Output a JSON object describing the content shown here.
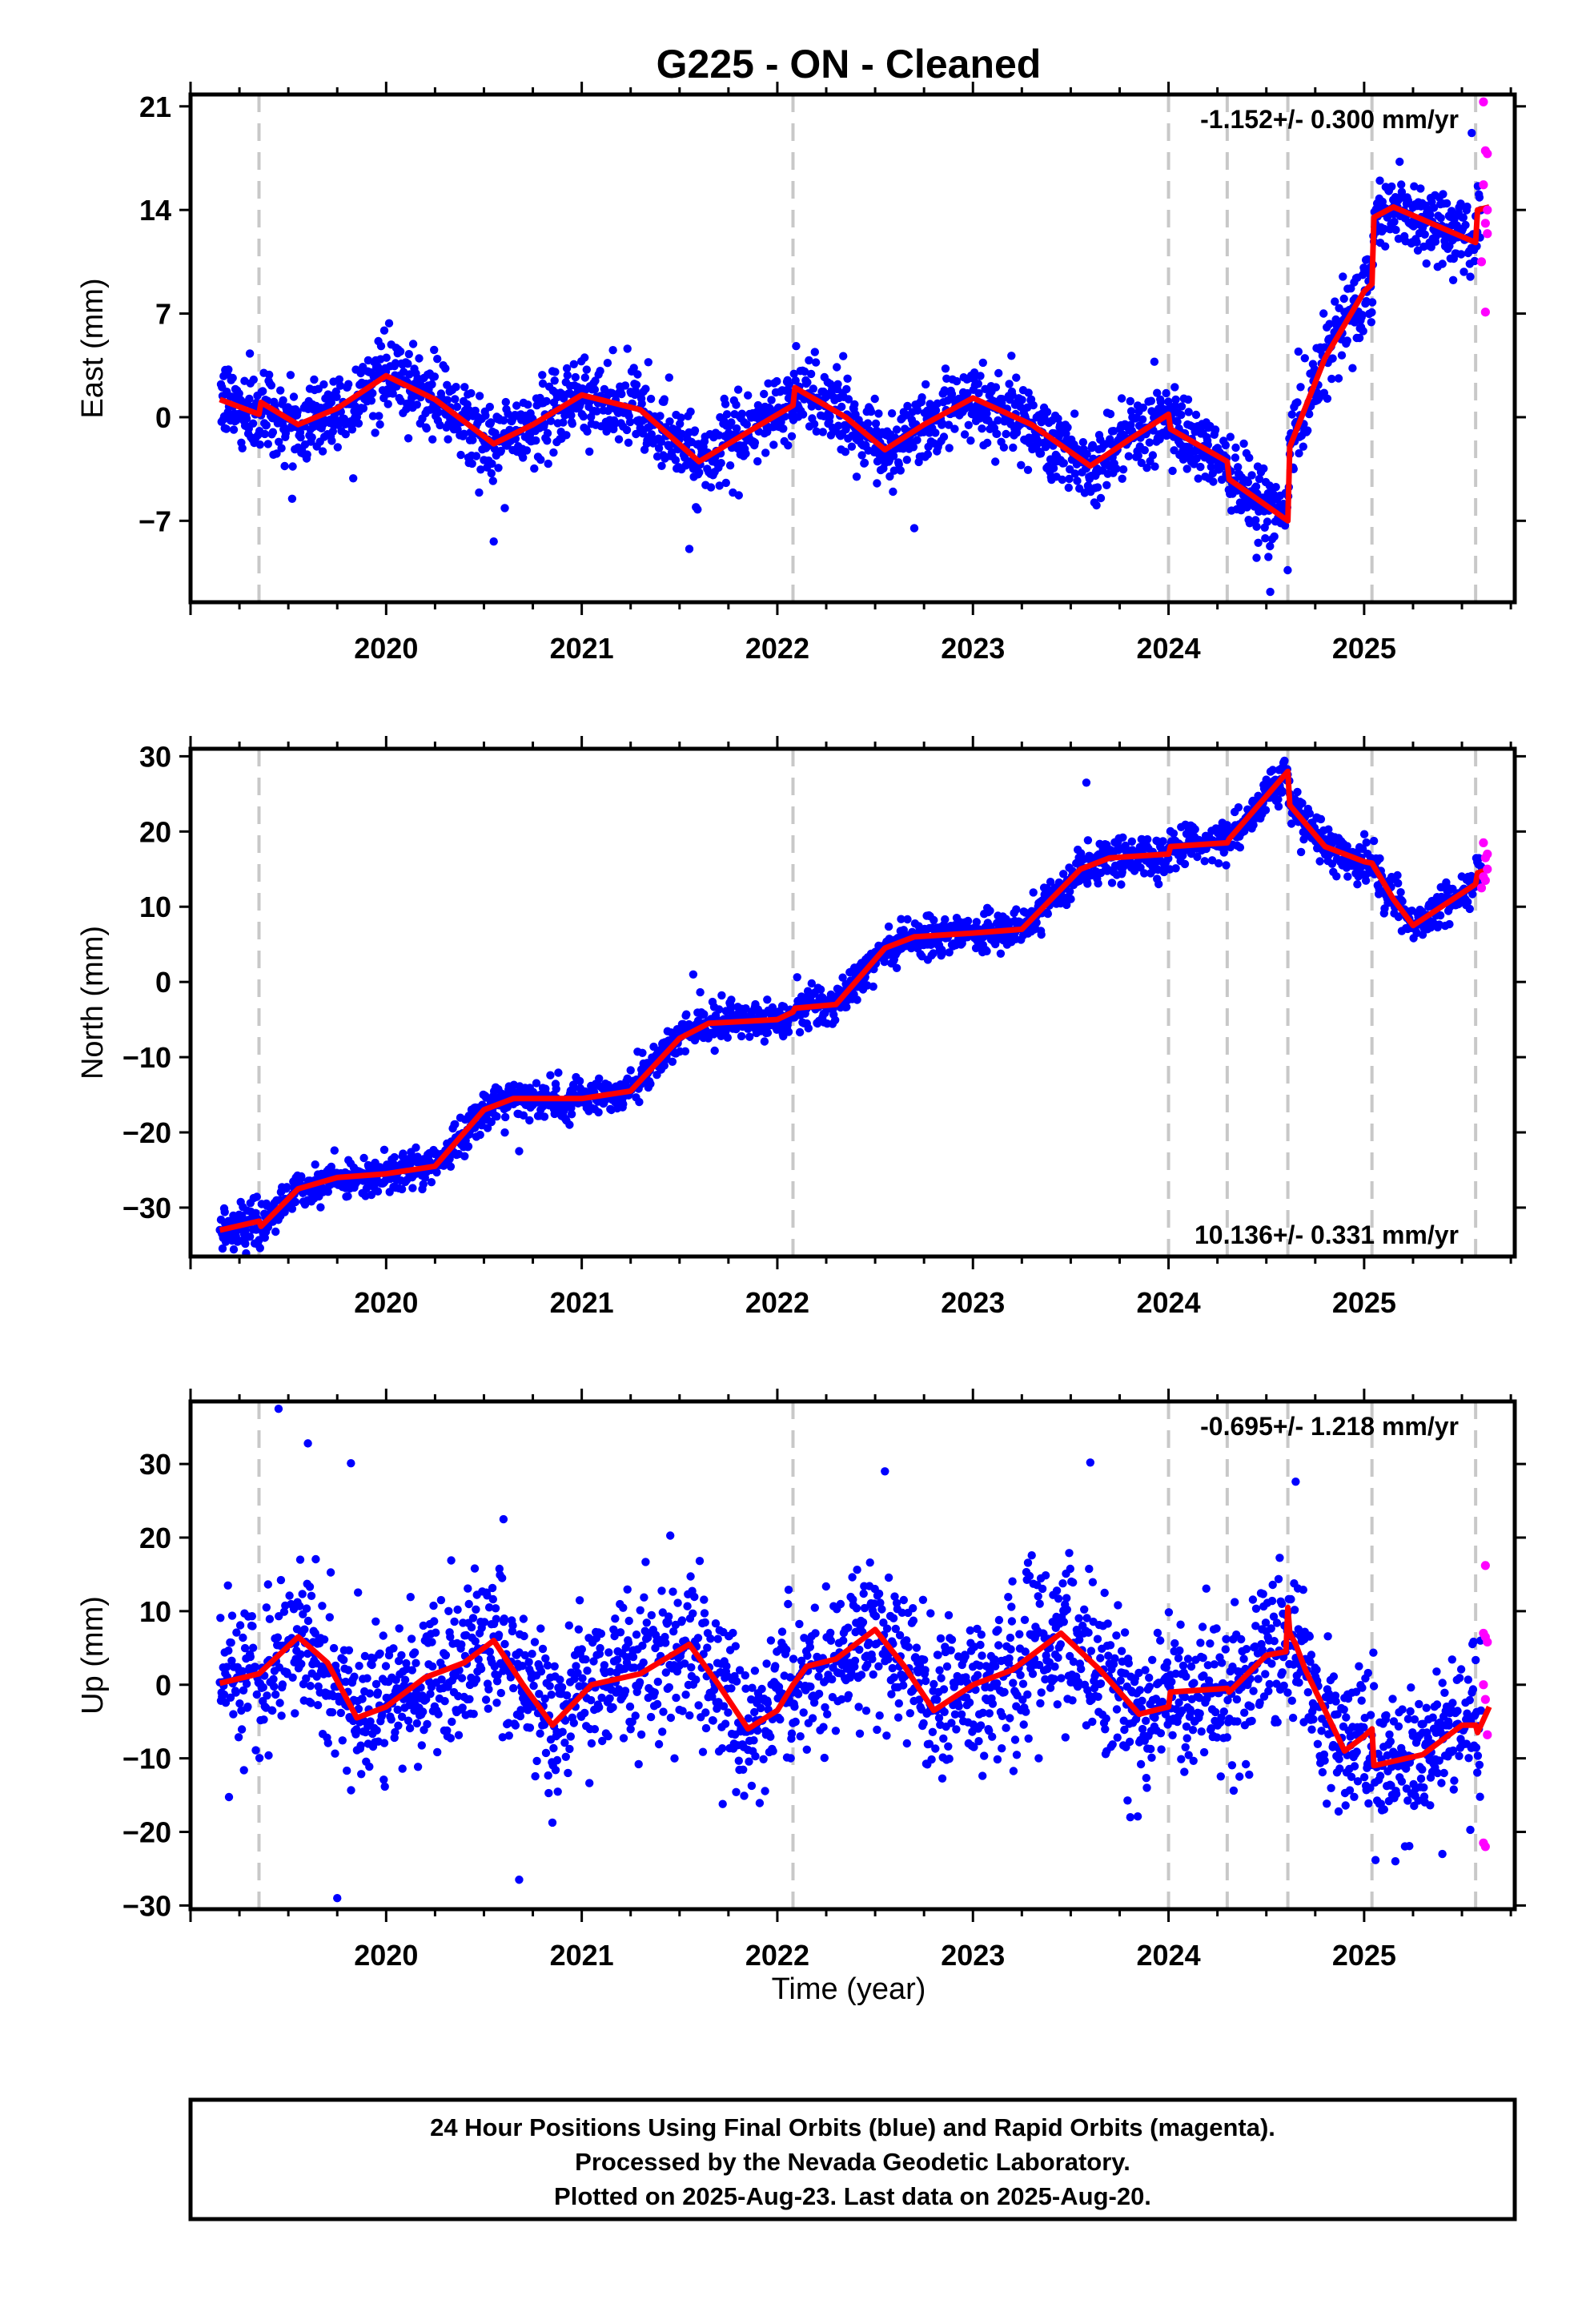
{
  "figure": {
    "title": "G225  - ON - Cleaned",
    "xlabel": "Time (year)",
    "footer": [
      "24 Hour Positions Using Final Orbits (blue) and Rapid Orbits (magenta).",
      "Processed by the Nevada Geodetic Laboratory.",
      "Plotted on 2025-Aug-23. Last data on 2025-Aug-20."
    ],
    "colors": {
      "final": "#0000ff",
      "rapid": "#ff00ff",
      "model": "#ff0000",
      "steps": "#c8c8c8"
    }
  },
  "chart_data": [
    {
      "type": "scatter",
      "ylabel": "East (mm)",
      "xlim": [
        2019.0,
        2025.77
      ],
      "ylim": [
        -12.5,
        21.8
      ],
      "yticks": [
        -7,
        0,
        7,
        14,
        21
      ],
      "xticks": [
        2020,
        2021,
        2022,
        2023,
        2024,
        2025
      ],
      "rate_text": "-1.152+/- 0.300 mm/yr",
      "rate_position": "top-right",
      "steps": [
        2019.35,
        2022.08,
        2024.0,
        2024.3,
        2024.61,
        2025.04,
        2025.57
      ],
      "series": [
        {
          "name": "Final Orbits",
          "color": "#0000ff",
          "trend": [
            [
              2019.15,
              1.2
            ],
            [
              2019.35,
              0.2
            ],
            [
              2019.36,
              1.0
            ],
            [
              2019.55,
              -0.5
            ],
            [
              2019.75,
              0.6
            ],
            [
              2020.0,
              2.8
            ],
            [
              2020.25,
              1.2
            ],
            [
              2020.55,
              -1.8
            ],
            [
              2020.75,
              -0.5
            ],
            [
              2021.0,
              1.5
            ],
            [
              2021.3,
              0.5
            ],
            [
              2021.6,
              -3.0
            ],
            [
              2021.85,
              -1.0
            ],
            [
              2022.08,
              0.8
            ],
            [
              2022.09,
              2.0
            ],
            [
              2022.35,
              0.0
            ],
            [
              2022.55,
              -2.2
            ],
            [
              2022.75,
              -0.5
            ],
            [
              2023.0,
              1.3
            ],
            [
              2023.3,
              -0.5
            ],
            [
              2023.6,
              -3.3
            ],
            [
              2023.8,
              -1.5
            ],
            [
              2024.0,
              0.2
            ],
            [
              2024.01,
              -0.8
            ],
            [
              2024.3,
              -3.0
            ],
            [
              2024.31,
              -4.2
            ],
            [
              2024.61,
              -7.0
            ],
            [
              2024.62,
              -2.0
            ],
            [
              2024.8,
              4.0
            ],
            [
              2025.0,
              8.5
            ],
            [
              2025.04,
              9.0
            ],
            [
              2025.05,
              13.5
            ],
            [
              2025.15,
              14.2
            ],
            [
              2025.57,
              11.8
            ],
            [
              2025.58,
              14.0
            ],
            [
              2025.64,
              14.2
            ]
          ],
          "noise": 1.3,
          "outliers": [
            [
              2020.55,
              -8.4
            ],
            [
              2021.55,
              -8.9
            ],
            [
              2022.7,
              -7.5
            ],
            [
              2024.52,
              -11.8
            ],
            [
              2025.55,
              19.2
            ],
            [
              2024.45,
              -9.5
            ]
          ]
        },
        {
          "name": "Rapid Orbits",
          "color": "#ff00ff",
          "points": [
            [
              2025.61,
              21.3
            ],
            [
              2025.62,
              18.0
            ],
            [
              2025.63,
              17.8
            ],
            [
              2025.61,
              15.7
            ],
            [
              2025.62,
              13.1
            ],
            [
              2025.63,
              12.4
            ],
            [
              2025.6,
              10.5
            ],
            [
              2025.62,
              7.1
            ],
            [
              2025.63,
              14.0
            ]
          ]
        }
      ]
    },
    {
      "type": "scatter",
      "ylabel": "North (mm)",
      "xlim": [
        2019.0,
        2025.77
      ],
      "ylim": [
        -36.5,
        31.0
      ],
      "yticks": [
        -30,
        -20,
        -10,
        0,
        10,
        20,
        30
      ],
      "xticks": [
        2020,
        2021,
        2022,
        2023,
        2024,
        2025
      ],
      "rate_text": "10.136+/- 0.331 mm/yr",
      "rate_position": "bottom-right",
      "steps": [
        2019.35,
        2022.08,
        2024.0,
        2024.3,
        2024.61,
        2025.04,
        2025.57
      ],
      "series": [
        {
          "name": "Final Orbits",
          "color": "#0000ff",
          "trend": [
            [
              2019.15,
              -33.0
            ],
            [
              2019.35,
              -31.8
            ],
            [
              2019.36,
              -32.5
            ],
            [
              2019.55,
              -27.5
            ],
            [
              2019.75,
              -26.0
            ],
            [
              2020.0,
              -25.5
            ],
            [
              2020.25,
              -24.5
            ],
            [
              2020.5,
              -17.0
            ],
            [
              2020.65,
              -15.5
            ],
            [
              2021.0,
              -15.5
            ],
            [
              2021.25,
              -14.5
            ],
            [
              2021.5,
              -7.5
            ],
            [
              2021.65,
              -5.5
            ],
            [
              2022.0,
              -5.0
            ],
            [
              2022.08,
              -4.0
            ],
            [
              2022.09,
              -3.5
            ],
            [
              2022.3,
              -3.0
            ],
            [
              2022.55,
              4.5
            ],
            [
              2022.7,
              6.0
            ],
            [
              2023.0,
              6.5
            ],
            [
              2023.25,
              7.0
            ],
            [
              2023.55,
              15.0
            ],
            [
              2023.7,
              16.5
            ],
            [
              2024.0,
              17.0
            ],
            [
              2024.01,
              18.0
            ],
            [
              2024.3,
              18.5
            ],
            [
              2024.31,
              19.0
            ],
            [
              2024.61,
              28.0
            ],
            [
              2024.62,
              23.5
            ],
            [
              2024.8,
              18.0
            ],
            [
              2025.0,
              16.0
            ],
            [
              2025.04,
              15.8
            ],
            [
              2025.15,
              11.0
            ],
            [
              2025.25,
              7.5
            ],
            [
              2025.57,
              13.0
            ],
            [
              2025.58,
              14.5
            ],
            [
              2025.64,
              15.0
            ]
          ],
          "noise": 1.3,
          "outliers": [
            [
              2020.68,
              -22.5
            ],
            [
              2021.57,
              1.0
            ],
            [
              2023.58,
              26.5
            ],
            [
              2019.28,
              -34.8
            ]
          ]
        },
        {
          "name": "Rapid Orbits",
          "color": "#ff00ff",
          "points": [
            [
              2025.61,
              18.5
            ],
            [
              2025.62,
              16.5
            ],
            [
              2025.63,
              15.0
            ],
            [
              2025.61,
              14.0
            ],
            [
              2025.62,
              13.5
            ],
            [
              2025.6,
              12.5
            ],
            [
              2025.63,
              17.0
            ]
          ]
        }
      ]
    },
    {
      "type": "scatter",
      "ylabel": "Up (mm)",
      "xlim": [
        2019.0,
        2025.77
      ],
      "ylim": [
        -30.5,
        38.5
      ],
      "yticks": [
        -30,
        -20,
        -10,
        0,
        10,
        20,
        30
      ],
      "xticks": [
        2020,
        2021,
        2022,
        2023,
        2024,
        2025
      ],
      "rate_text": "-0.695+/- 1.218 mm/yr",
      "rate_position": "top-right",
      "steps": [
        2019.35,
        2022.08,
        2024.0,
        2024.3,
        2024.61,
        2025.04,
        2025.57
      ],
      "series": [
        {
          "name": "Final Orbits",
          "color": "#0000ff",
          "trend": [
            [
              2019.15,
              0.2
            ],
            [
              2019.35,
              1.5
            ],
            [
              2019.55,
              6.5
            ],
            [
              2019.7,
              3.0
            ],
            [
              2019.85,
              -4.5
            ],
            [
              2020.0,
              -3.0
            ],
            [
              2020.2,
              1.0
            ],
            [
              2020.4,
              3.0
            ],
            [
              2020.55,
              6.0
            ],
            [
              2020.7,
              0.0
            ],
            [
              2020.85,
              -5.5
            ],
            [
              2021.05,
              0.0
            ],
            [
              2021.3,
              1.5
            ],
            [
              2021.55,
              5.5
            ],
            [
              2021.7,
              0.0
            ],
            [
              2021.85,
              -6.0
            ],
            [
              2022.0,
              -3.5
            ],
            [
              2022.08,
              0.0
            ],
            [
              2022.15,
              2.5
            ],
            [
              2022.3,
              3.5
            ],
            [
              2022.5,
              7.5
            ],
            [
              2022.65,
              2.5
            ],
            [
              2022.8,
              -3.5
            ],
            [
              2023.0,
              0.0
            ],
            [
              2023.2,
              2.0
            ],
            [
              2023.45,
              7.0
            ],
            [
              2023.65,
              2.0
            ],
            [
              2023.85,
              -4.0
            ],
            [
              2024.0,
              -3.0
            ],
            [
              2024.01,
              -1.0
            ],
            [
              2024.3,
              -0.5
            ],
            [
              2024.31,
              -1.0
            ],
            [
              2024.5,
              4.0
            ],
            [
              2024.6,
              4.5
            ],
            [
              2024.61,
              10.5
            ],
            [
              2024.62,
              7.0
            ],
            [
              2024.65,
              5.5
            ],
            [
              2024.7,
              2.0
            ],
            [
              2024.9,
              -9.0
            ],
            [
              2025.0,
              -7.0
            ],
            [
              2025.04,
              -6.0
            ],
            [
              2025.05,
              -11.0
            ],
            [
              2025.3,
              -9.5
            ],
            [
              2025.5,
              -5.5
            ],
            [
              2025.57,
              -5.5
            ],
            [
              2025.58,
              -6.5
            ],
            [
              2025.64,
              -3.0
            ]
          ],
          "noise": 5.0,
          "outliers": [
            [
              2019.45,
              37.5
            ],
            [
              2019.6,
              32.8
            ],
            [
              2019.82,
              30.1
            ],
            [
              2020.6,
              22.5
            ],
            [
              2020.68,
              -26.5
            ],
            [
              2019.75,
              -29.0
            ],
            [
              2023.6,
              30.2
            ],
            [
              2022.55,
              29.0
            ],
            [
              2024.65,
              27.6
            ],
            [
              2025.4,
              -23.0
            ]
          ]
        },
        {
          "name": "Rapid Orbits",
          "color": "#ff00ff",
          "points": [
            [
              2025.62,
              16.2
            ],
            [
              2025.61,
              7.0
            ],
            [
              2025.62,
              6.5
            ],
            [
              2025.63,
              5.8
            ],
            [
              2025.61,
              0.0
            ],
            [
              2025.62,
              -2.0
            ],
            [
              2025.63,
              -6.8
            ],
            [
              2025.61,
              -21.5
            ],
            [
              2025.62,
              -22.0
            ]
          ]
        }
      ]
    }
  ]
}
